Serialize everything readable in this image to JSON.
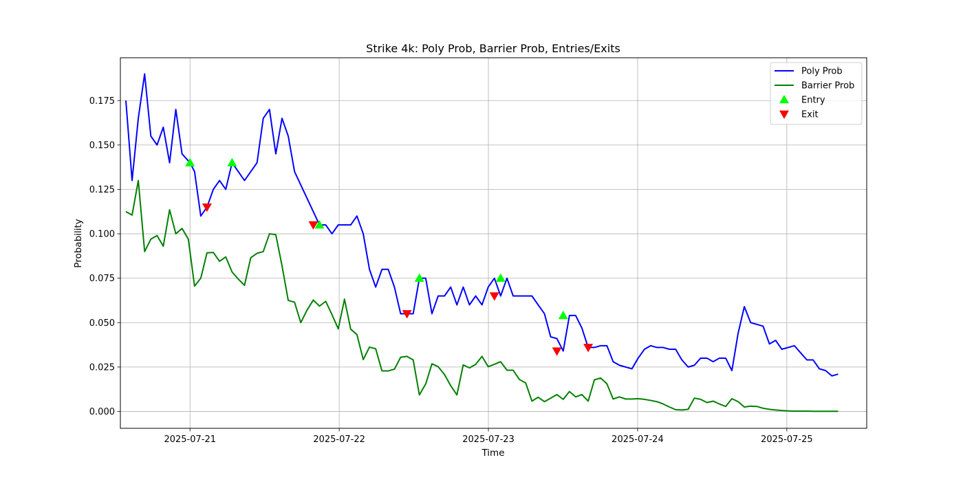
{
  "chart_data": {
    "type": "line",
    "title": "Strike 4k: Poly Prob, Barrier Prob, Entries/Exits",
    "xlabel": "Time",
    "ylabel": "Probability",
    "xlim": [
      "2025-07-20 12:48",
      "2025-07-25 12:51"
    ],
    "ylim": [
      -0.0095,
      0.1991
    ],
    "x_ticks": [
      "2025-07-21",
      "2025-07-22",
      "2025-07-23",
      "2025-07-24",
      "2025-07-25"
    ],
    "y_ticks": [
      "0.000",
      "0.025",
      "0.050",
      "0.075",
      "0.100",
      "0.125",
      "0.150",
      "0.175"
    ],
    "grid": true,
    "legend_position": "top-right",
    "series": [
      {
        "name": "Poly Prob",
        "color": "#0000ff",
        "style": "line",
        "points": [
          [
            "2025-07-20 13:41",
            0.175
          ],
          [
            "2025-07-20 14:41",
            0.13
          ],
          [
            "2025-07-20 15:41",
            0.165
          ],
          [
            "2025-07-20 16:42",
            0.19
          ],
          [
            "2025-07-20 17:42",
            0.155
          ],
          [
            "2025-07-20 18:42",
            0.15
          ],
          [
            "2025-07-20 19:42",
            0.16
          ],
          [
            "2025-07-20 20:43",
            0.14
          ],
          [
            "2025-07-20 21:43",
            0.17
          ],
          [
            "2025-07-20 22:43",
            0.145
          ],
          [
            "2025-07-21 00:00",
            0.14
          ],
          [
            "2025-07-21 00:44",
            0.135
          ],
          [
            "2025-07-21 01:44",
            0.11
          ],
          [
            "2025-07-21 02:44",
            0.115
          ],
          [
            "2025-07-21 03:45",
            0.125
          ],
          [
            "2025-07-21 04:45",
            0.13
          ],
          [
            "2025-07-21 05:45",
            0.125
          ],
          [
            "2025-07-21 06:46",
            0.14
          ],
          [
            "2025-07-21 07:46",
            0.135
          ],
          [
            "2025-07-21 08:46",
            0.13
          ],
          [
            "2025-07-21 10:47",
            0.14
          ],
          [
            "2025-07-21 11:47",
            0.165
          ],
          [
            "2025-07-21 12:47",
            0.17
          ],
          [
            "2025-07-21 13:48",
            0.145
          ],
          [
            "2025-07-21 14:48",
            0.165
          ],
          [
            "2025-07-21 15:48",
            0.155
          ],
          [
            "2025-07-21 16:49",
            0.135
          ],
          [
            "2025-07-21 20:50",
            0.105
          ],
          [
            "2025-07-21 21:50",
            0.105
          ],
          [
            "2025-07-21 22:50",
            0.1
          ],
          [
            "2025-07-21 23:51",
            0.105
          ],
          [
            "2025-07-22 01:51",
            0.105
          ],
          [
            "2025-07-22 02:51",
            0.11
          ],
          [
            "2025-07-22 03:52",
            0.1
          ],
          [
            "2025-07-22 04:52",
            0.08
          ],
          [
            "2025-07-22 05:52",
            0.07
          ],
          [
            "2025-07-22 06:53",
            0.08
          ],
          [
            "2025-07-22 07:53",
            0.08
          ],
          [
            "2025-07-22 08:53",
            0.07
          ],
          [
            "2025-07-22 09:53",
            0.055
          ],
          [
            "2025-07-22 10:54",
            0.055
          ],
          [
            "2025-07-22 11:54",
            0.055
          ],
          [
            "2025-07-22 12:54",
            0.075
          ],
          [
            "2025-07-22 13:55",
            0.075
          ],
          [
            "2025-07-22 14:55",
            0.055
          ],
          [
            "2025-07-22 15:55",
            0.065
          ],
          [
            "2025-07-22 16:56",
            0.065
          ],
          [
            "2025-07-22 17:56",
            0.07
          ],
          [
            "2025-07-22 18:56",
            0.06
          ],
          [
            "2025-07-22 19:57",
            0.07
          ],
          [
            "2025-07-22 20:57",
            0.06
          ],
          [
            "2025-07-22 21:57",
            0.065
          ],
          [
            "2025-07-22 22:58",
            0.06
          ],
          [
            "2025-07-22 23:58",
            0.07
          ],
          [
            "2025-07-23 00:58",
            0.075
          ],
          [
            "2025-07-23 01:58",
            0.065
          ],
          [
            "2025-07-23 02:59",
            0.075
          ],
          [
            "2025-07-23 03:59",
            0.065
          ],
          [
            "2025-07-23 04:59",
            0.065
          ],
          [
            "2025-07-23 06:00",
            0.065
          ],
          [
            "2025-07-23 07:00",
            0.065
          ],
          [
            "2025-07-23 08:00",
            0.06
          ],
          [
            "2025-07-23 09:01",
            0.055
          ],
          [
            "2025-07-23 10:01",
            0.042
          ],
          [
            "2025-07-23 11:01",
            0.041
          ],
          [
            "2025-07-23 12:02",
            0.034
          ],
          [
            "2025-07-23 13:02",
            0.054
          ],
          [
            "2025-07-23 14:02",
            0.054
          ],
          [
            "2025-07-23 15:02",
            0.047
          ],
          [
            "2025-07-23 16:03",
            0.036
          ],
          [
            "2025-07-23 17:03",
            0.036
          ],
          [
            "2025-07-23 18:03",
            0.037
          ],
          [
            "2025-07-23 19:04",
            0.037
          ],
          [
            "2025-07-23 20:04",
            0.028
          ],
          [
            "2025-07-23 21:04",
            0.026
          ],
          [
            "2025-07-23 22:05",
            0.025
          ],
          [
            "2025-07-23 23:05",
            0.024
          ],
          [
            "2025-07-24 00:05",
            0.03
          ],
          [
            "2025-07-24 01:06",
            0.035
          ],
          [
            "2025-07-24 02:06",
            0.037
          ],
          [
            "2025-07-24 03:06",
            0.036
          ],
          [
            "2025-07-24 04:06",
            0.036
          ],
          [
            "2025-07-24 05:07",
            0.035
          ],
          [
            "2025-07-24 06:07",
            0.035
          ],
          [
            "2025-07-24 07:07",
            0.029
          ],
          [
            "2025-07-24 08:08",
            0.025
          ],
          [
            "2025-07-24 09:08",
            0.026
          ],
          [
            "2025-07-24 10:08",
            0.03
          ],
          [
            "2025-07-24 11:09",
            0.03
          ],
          [
            "2025-07-24 12:09",
            0.028
          ],
          [
            "2025-07-24 13:09",
            0.03
          ],
          [
            "2025-07-24 14:10",
            0.03
          ],
          [
            "2025-07-24 15:10",
            0.023
          ],
          [
            "2025-07-24 16:10",
            0.044
          ],
          [
            "2025-07-24 17:10",
            0.059
          ],
          [
            "2025-07-24 18:11",
            0.05
          ],
          [
            "2025-07-24 19:11",
            0.049
          ],
          [
            "2025-07-24 20:11",
            0.048
          ],
          [
            "2025-07-24 21:12",
            0.038
          ],
          [
            "2025-07-24 22:12",
            0.04
          ],
          [
            "2025-07-24 23:12",
            0.035
          ],
          [
            "2025-07-25 00:13",
            0.036
          ],
          [
            "2025-07-25 01:13",
            0.037
          ],
          [
            "2025-07-25 02:13",
            0.033
          ],
          [
            "2025-07-25 03:14",
            0.029
          ],
          [
            "2025-07-25 04:14",
            0.029
          ],
          [
            "2025-07-25 05:14",
            0.024
          ],
          [
            "2025-07-25 06:14",
            0.023
          ],
          [
            "2025-07-25 07:15",
            0.02
          ],
          [
            "2025-07-25 08:15",
            0.021
          ]
        ]
      },
      {
        "name": "Barrier Prob",
        "color": "#008000",
        "style": "line",
        "points": [
          [
            "2025-07-20 13:41",
            0.1125
          ],
          [
            "2025-07-20 14:41",
            0.1105
          ],
          [
            "2025-07-20 15:41",
            0.13
          ],
          [
            "2025-07-20 16:42",
            0.09
          ],
          [
            "2025-07-20 17:42",
            0.097
          ],
          [
            "2025-07-20 18:42",
            0.099
          ],
          [
            "2025-07-20 19:42",
            0.093
          ],
          [
            "2025-07-20 20:43",
            0.1135
          ],
          [
            "2025-07-20 21:43",
            0.1
          ],
          [
            "2025-07-20 22:43",
            0.103
          ],
          [
            "2025-07-20 23:44",
            0.097
          ],
          [
            "2025-07-21 00:44",
            0.0705
          ],
          [
            "2025-07-21 01:44",
            0.075
          ],
          [
            "2025-07-21 02:44",
            0.0893
          ],
          [
            "2025-07-21 03:45",
            0.0895
          ],
          [
            "2025-07-21 04:45",
            0.0845
          ],
          [
            "2025-07-21 05:45",
            0.087
          ],
          [
            "2025-07-21 06:46",
            0.0785
          ],
          [
            "2025-07-21 07:46",
            0.0745
          ],
          [
            "2025-07-21 08:46",
            0.071
          ],
          [
            "2025-07-21 09:46",
            0.0865
          ],
          [
            "2025-07-21 10:47",
            0.089
          ],
          [
            "2025-07-21 11:47",
            0.09
          ],
          [
            "2025-07-21 12:47",
            0.1
          ],
          [
            "2025-07-21 13:48",
            0.0995
          ],
          [
            "2025-07-21 14:48",
            0.082
          ],
          [
            "2025-07-21 15:48",
            0.0625
          ],
          [
            "2025-07-21 16:49",
            0.0615
          ],
          [
            "2025-07-21 17:49",
            0.05
          ],
          [
            "2025-07-21 18:49",
            0.057
          ],
          [
            "2025-07-21 19:50",
            0.0627
          ],
          [
            "2025-07-21 20:50",
            0.0593
          ],
          [
            "2025-07-21 21:50",
            0.062
          ],
          [
            "2025-07-21 22:50",
            0.0545
          ],
          [
            "2025-07-21 23:51",
            0.0465
          ],
          [
            "2025-07-22 00:51",
            0.0632
          ],
          [
            "2025-07-22 01:51",
            0.0463
          ],
          [
            "2025-07-22 02:51",
            0.0433
          ],
          [
            "2025-07-22 03:52",
            0.0292
          ],
          [
            "2025-07-22 04:52",
            0.0362
          ],
          [
            "2025-07-22 05:52",
            0.0353
          ],
          [
            "2025-07-22 06:53",
            0.0228
          ],
          [
            "2025-07-22 07:53",
            0.0228
          ],
          [
            "2025-07-22 08:53",
            0.0238
          ],
          [
            "2025-07-22 09:53",
            0.0305
          ],
          [
            "2025-07-22 10:54",
            0.031
          ],
          [
            "2025-07-22 11:54",
            0.029
          ],
          [
            "2025-07-22 12:54",
            0.0093
          ],
          [
            "2025-07-22 13:55",
            0.0155
          ],
          [
            "2025-07-22 14:55",
            0.0268
          ],
          [
            "2025-07-22 15:55",
            0.0252
          ],
          [
            "2025-07-22 16:56",
            0.0208
          ],
          [
            "2025-07-22 17:56",
            0.0145
          ],
          [
            "2025-07-22 18:56",
            0.0093
          ],
          [
            "2025-07-22 19:57",
            0.0262
          ],
          [
            "2025-07-22 20:57",
            0.0245
          ],
          [
            "2025-07-22 21:57",
            0.0265
          ],
          [
            "2025-07-22 22:58",
            0.031
          ],
          [
            "2025-07-22 23:58",
            0.0252
          ],
          [
            "2025-07-23 00:58",
            0.0265
          ],
          [
            "2025-07-23 01:58",
            0.028
          ],
          [
            "2025-07-23 02:59",
            0.0232
          ],
          [
            "2025-07-23 03:59",
            0.0232
          ],
          [
            "2025-07-23 04:59",
            0.018
          ],
          [
            "2025-07-23 06:00",
            0.016
          ],
          [
            "2025-07-23 07:00",
            0.0058
          ],
          [
            "2025-07-23 08:00",
            0.008
          ],
          [
            "2025-07-23 09:01",
            0.0055
          ],
          [
            "2025-07-23 10:01",
            0.0075
          ],
          [
            "2025-07-23 11:01",
            0.0095
          ],
          [
            "2025-07-23 12:02",
            0.0068
          ],
          [
            "2025-07-23 13:02",
            0.0112
          ],
          [
            "2025-07-23 14:02",
            0.0082
          ],
          [
            "2025-07-23 15:02",
            0.0095
          ],
          [
            "2025-07-23 16:03",
            0.0058
          ],
          [
            "2025-07-23 17:03",
            0.0178
          ],
          [
            "2025-07-23 18:03",
            0.0188
          ],
          [
            "2025-07-23 19:04",
            0.0155
          ],
          [
            "2025-07-23 20:04",
            0.007
          ],
          [
            "2025-07-23 21:04",
            0.0082
          ],
          [
            "2025-07-23 22:05",
            0.007
          ],
          [
            "2025-07-23 23:05",
            0.007
          ],
          [
            "2025-07-24 00:05",
            0.0072
          ],
          [
            "2025-07-24 01:06",
            0.0068
          ],
          [
            "2025-07-24 02:06",
            0.0062
          ],
          [
            "2025-07-24 03:06",
            0.0055
          ],
          [
            "2025-07-24 04:06",
            0.0042
          ],
          [
            "2025-07-24 05:07",
            0.0025
          ],
          [
            "2025-07-24 06:07",
            0.001
          ],
          [
            "2025-07-24 07:07",
            0.0008
          ],
          [
            "2025-07-24 08:08",
            0.0012
          ],
          [
            "2025-07-24 09:08",
            0.0075
          ],
          [
            "2025-07-24 10:08",
            0.0068
          ],
          [
            "2025-07-24 11:09",
            0.005
          ],
          [
            "2025-07-24 12:09",
            0.0058
          ],
          [
            "2025-07-24 13:09",
            0.0042
          ],
          [
            "2025-07-24 14:10",
            0.0028
          ],
          [
            "2025-07-24 15:10",
            0.0072
          ],
          [
            "2025-07-24 16:10",
            0.0055
          ],
          [
            "2025-07-24 17:10",
            0.0025
          ],
          [
            "2025-07-24 18:11",
            0.003
          ],
          [
            "2025-07-24 19:11",
            0.0028
          ],
          [
            "2025-07-24 20:11",
            0.0018
          ],
          [
            "2025-07-24 21:12",
            0.0012
          ],
          [
            "2025-07-24 22:12",
            0.0008
          ],
          [
            "2025-07-24 23:12",
            0.0005
          ],
          [
            "2025-07-25 00:13",
            0.0003
          ],
          [
            "2025-07-25 01:13",
            0.0002
          ],
          [
            "2025-07-25 02:13",
            0.0002
          ],
          [
            "2025-07-25 03:14",
            0.0002
          ],
          [
            "2025-07-25 04:14",
            0.0001
          ],
          [
            "2025-07-25 05:14",
            0.0001
          ],
          [
            "2025-07-25 06:14",
            0.0001
          ],
          [
            "2025-07-25 07:15",
            0.0001
          ],
          [
            "2025-07-25 08:15",
            0.0001
          ]
        ]
      },
      {
        "name": "Entry",
        "color": "#00ff00",
        "style": "marker-triangle-up",
        "points": [
          [
            "2025-07-21 00:00",
            0.14
          ],
          [
            "2025-07-21 06:46",
            0.14
          ],
          [
            "2025-07-21 20:50",
            0.105
          ],
          [
            "2025-07-22 12:54",
            0.075
          ],
          [
            "2025-07-23 01:58",
            0.075
          ],
          [
            "2025-07-23 12:02",
            0.054
          ]
        ]
      },
      {
        "name": "Exit",
        "color": "#ff0000",
        "style": "marker-triangle-down",
        "points": [
          [
            "2025-07-21 02:44",
            0.115
          ],
          [
            "2025-07-21 19:50",
            0.105
          ],
          [
            "2025-07-22 10:54",
            0.055
          ],
          [
            "2025-07-23 00:58",
            0.065
          ],
          [
            "2025-07-23 11:01",
            0.034
          ],
          [
            "2025-07-23 16:03",
            0.036
          ]
        ]
      }
    ]
  }
}
